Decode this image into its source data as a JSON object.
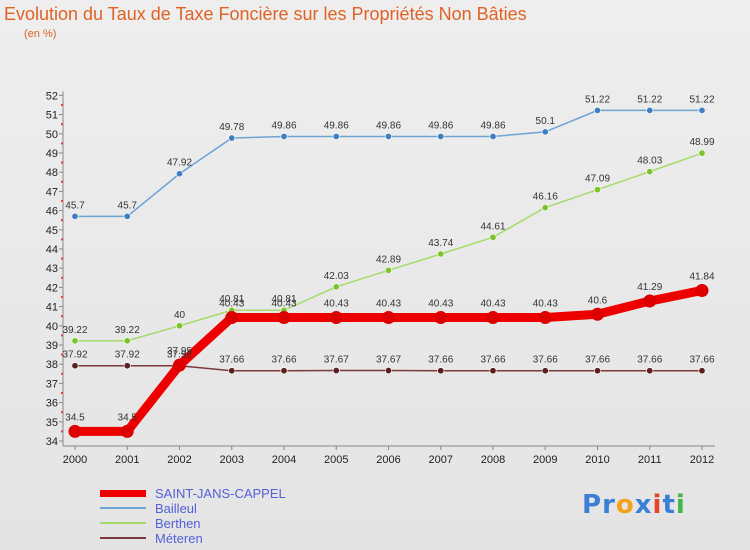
{
  "header": {
    "title": "Evolution du Taux de Taxe Foncière sur les Propriétés Non Bâties",
    "unit": "(en %)"
  },
  "logo": {
    "text": "Proxiti",
    "letters": [
      {
        "ch": "P",
        "color": "#3a7fd5"
      },
      {
        "ch": "r",
        "color": "#3a7fd5"
      },
      {
        "ch": "o",
        "color": "#f2a31a"
      },
      {
        "ch": "x",
        "color": "#3a7fd5"
      },
      {
        "ch": "i",
        "color": "#e8432a"
      },
      {
        "ch": "t",
        "color": "#3a7fd5"
      },
      {
        "ch": "i",
        "color": "#44b549"
      }
    ]
  },
  "chart_data": {
    "type": "line",
    "title": "Evolution du Taux de Taxe Foncière sur les Propriétés Non Bâties",
    "ylabel": "(en %)",
    "xlabel": "",
    "ylim": [
      34,
      52
    ],
    "yticks": [
      "34",
      "35",
      "36",
      "37",
      "38",
      "39",
      "40",
      "41",
      "42",
      "43",
      "44",
      "45",
      "46",
      "47",
      "48",
      "49",
      "50",
      "51",
      "52"
    ],
    "categories": [
      "2000",
      "2001",
      "2002",
      "2003",
      "2004",
      "2005",
      "2006",
      "2007",
      "2008",
      "2009",
      "2010",
      "2011",
      "2012"
    ],
    "grid": false,
    "legend_position": "bottom-left",
    "series": [
      {
        "name": "SAINT-JANS-CAPPEL",
        "color": "#ee0000",
        "markerColor": "#dd0000",
        "thick": true,
        "values": [
          34.5,
          34.5,
          37.95,
          40.43,
          40.43,
          40.43,
          40.43,
          40.43,
          40.43,
          40.43,
          40.6,
          41.29,
          41.84
        ],
        "labels": [
          "34.5",
          "34.5",
          "37.95",
          "40.43",
          "40.43",
          "40.43",
          "40.43",
          "40.43",
          "40.43",
          "40.43",
          "40.6",
          "41.29",
          "41.84"
        ]
      },
      {
        "name": "Bailleul",
        "color": "#6ea3d5",
        "markerColor": "#3f7fc0",
        "thick": false,
        "values": [
          45.7,
          45.7,
          47.92,
          49.78,
          49.86,
          49.86,
          49.86,
          49.86,
          49.86,
          50.1,
          51.22,
          51.22,
          51.22
        ],
        "labels": [
          "45.7",
          "45.7",
          "47.92",
          "49.78",
          "49.86",
          "49.86",
          "49.86",
          "49.86",
          "49.86",
          "50.1",
          "51.22",
          "51.22",
          "51.22"
        ]
      },
      {
        "name": "Berthen",
        "color": "#a6d96a",
        "markerColor": "#7cc42c",
        "thick": false,
        "values": [
          39.22,
          39.22,
          40,
          40.81,
          40.81,
          42.03,
          42.89,
          43.74,
          44.61,
          46.16,
          47.09,
          48.03,
          48.99
        ],
        "labels": [
          "39.22",
          "39.22",
          "40",
          "40.81",
          "40.81",
          "42.03",
          "42.89",
          "43.74",
          "44.61",
          "46.16",
          "47.09",
          "48.03",
          "48.99"
        ]
      },
      {
        "name": "Méteren",
        "color": "#7a3a3a",
        "markerColor": "#5a1f1f",
        "thick": false,
        "values": [
          37.92,
          37.92,
          37.92,
          37.66,
          37.66,
          37.67,
          37.67,
          37.66,
          37.66,
          37.66,
          37.66,
          37.66,
          37.66
        ],
        "labels": [
          "37.92",
          "37.92",
          "37.92",
          "37.66",
          "37.66",
          "37.67",
          "37.67",
          "37.66",
          "37.66",
          "37.66",
          "37.66",
          "37.66",
          "37.66"
        ]
      }
    ]
  }
}
